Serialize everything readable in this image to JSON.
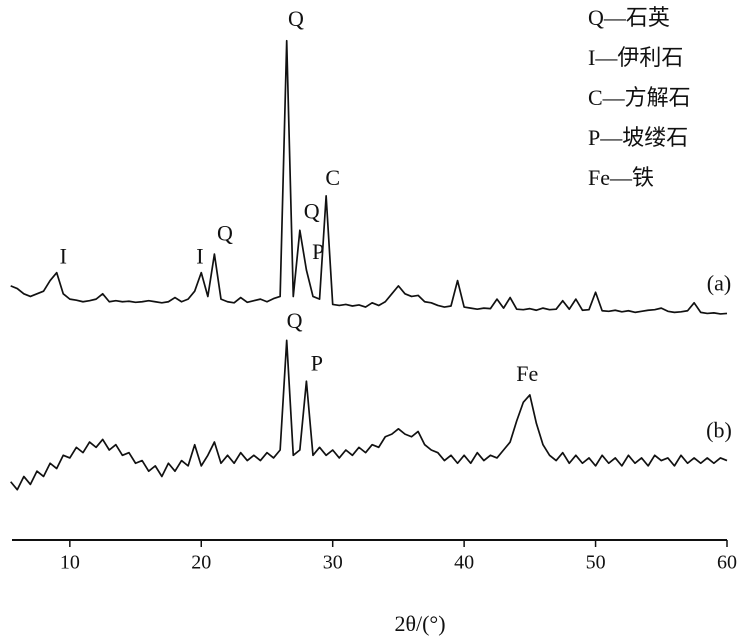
{
  "chart_data": {
    "type": "line",
    "xlabel": "2θ/(°)",
    "xlim": [
      5.6,
      60
    ],
    "xticks": [
      10,
      20,
      30,
      40,
      50,
      60
    ],
    "ylim": [
      0,
      102
    ],
    "legend": [
      "Q—石英",
      "I—伊利石",
      "C—方解石",
      "P—坡缕石",
      "Fe—铁"
    ],
    "x": [
      5.5,
      6,
      6.5,
      7,
      7.5,
      8,
      8.5,
      9,
      9.5,
      10,
      10.5,
      11,
      11.5,
      12,
      12.5,
      13,
      13.5,
      14,
      14.5,
      15,
      15.5,
      16,
      16.5,
      17,
      17.5,
      18,
      18.5,
      19,
      19.5,
      20,
      20.5,
      21,
      21.5,
      22,
      22.5,
      23,
      23.5,
      24,
      24.5,
      25,
      25.5,
      26,
      26.5,
      27,
      27.5,
      28,
      28.5,
      29,
      29.5,
      30,
      30.5,
      31,
      31.5,
      32,
      32.5,
      33,
      33.5,
      34,
      34.5,
      35,
      35.5,
      36,
      36.5,
      37,
      37.5,
      38,
      38.5,
      39,
      39.5,
      40,
      40.5,
      41,
      41.5,
      42,
      42.5,
      43,
      43.5,
      44,
      44.5,
      45,
      45.5,
      46,
      46.5,
      47,
      47.5,
      48,
      48.5,
      49,
      49.5,
      50,
      50.5,
      51,
      51.5,
      52,
      52.5,
      53,
      53.5,
      54,
      54.5,
      55,
      55.5,
      56,
      56.5,
      57,
      57.5,
      58,
      58.5,
      59,
      59.5,
      60
    ],
    "series": [
      {
        "name": "(a)",
        "color": "#111111",
        "values": [
          48,
          47.5,
          46.5,
          46,
          46.5,
          47,
          49,
          50.5,
          46.5,
          45.5,
          45.3,
          45,
          45.2,
          45.5,
          46.5,
          45,
          45.2,
          45,
          45.1,
          44.9,
          45,
          45.2,
          45,
          44.8,
          45,
          45.8,
          45,
          45.5,
          47,
          50.5,
          46,
          54,
          45.5,
          45,
          44.8,
          45.8,
          44.9,
          45.2,
          45.5,
          45,
          45.6,
          46,
          94.3,
          46,
          58.5,
          51,
          46,
          45.5,
          65,
          44.5,
          44.3,
          44.5,
          44.2,
          44.4,
          44,
          44.8,
          44.3,
          45,
          46.5,
          48,
          46.5,
          46,
          46.2,
          45,
          44.8,
          44.3,
          44,
          44.2,
          49,
          44,
          43.8,
          43.6,
          43.8,
          43.7,
          45.5,
          43.8,
          45.8,
          43.6,
          43.5,
          43.7,
          43.4,
          43.8,
          43.5,
          43.6,
          45.2,
          43.6,
          45.5,
          43.4,
          43.5,
          46.8,
          43.3,
          43.2,
          43.4,
          43.1,
          43.3,
          43,
          43.2,
          43.4,
          43.5,
          43.8,
          43.2,
          43,
          43.1,
          43.3,
          44.8,
          43,
          42.8,
          42.9,
          42.7,
          42.8
        ]
      },
      {
        "name": "(b)",
        "color": "#111111",
        "values": [
          11,
          9.5,
          12,
          10.5,
          13,
          12,
          14.5,
          13.5,
          16,
          15.5,
          17.5,
          16.5,
          18.5,
          17.5,
          19,
          17,
          18,
          16,
          16.5,
          14.5,
          15,
          13,
          14,
          12,
          14.5,
          13,
          15,
          14,
          18,
          14,
          16,
          18.5,
          14.5,
          16,
          14.5,
          16.5,
          15,
          16,
          15,
          16.5,
          15.5,
          17,
          37.7,
          16,
          17,
          30,
          16,
          17.5,
          16,
          17,
          15.5,
          17,
          16,
          17.5,
          16.5,
          18,
          17.5,
          19.5,
          20,
          21,
          20,
          19.5,
          20.5,
          18,
          17,
          16.5,
          15,
          16,
          14.5,
          16,
          14.5,
          16.5,
          15,
          16,
          15.5,
          17,
          18.5,
          22.5,
          26,
          27.4,
          22,
          18,
          16,
          15,
          16.5,
          14.5,
          16,
          14.5,
          15.5,
          14,
          16,
          14.5,
          15.5,
          14,
          16,
          14.5,
          15.5,
          14,
          16,
          15,
          15.5,
          14,
          16,
          14.5,
          15.5,
          14.5,
          15.5,
          14.5,
          15.5,
          15
        ]
      }
    ],
    "annotations": [
      {
        "text": "I",
        "x": 9.5,
        "y": 53.2
      },
      {
        "text": "I",
        "x": 19.9,
        "y": 53.2
      },
      {
        "text": "Q",
        "x": 21.8,
        "y": 57.5
      },
      {
        "text": "Q",
        "x": 27.2,
        "y": 98
      },
      {
        "text": "Q",
        "x": 28.4,
        "y": 61.7
      },
      {
        "text": "P",
        "x": 28.9,
        "y": 54
      },
      {
        "text": "C",
        "x": 30,
        "y": 68
      },
      {
        "text": "Q",
        "x": 27.1,
        "y": 41
      },
      {
        "text": "P",
        "x": 28.8,
        "y": 33
      },
      {
        "text": "Fe",
        "x": 44.8,
        "y": 31
      }
    ]
  }
}
